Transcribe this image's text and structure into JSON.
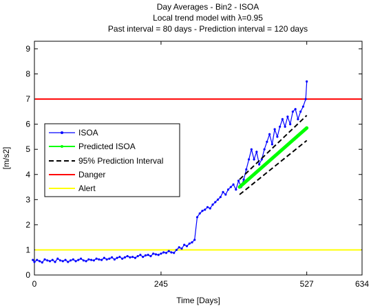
{
  "chart_data": {
    "type": "line",
    "title": [
      "Day Averages - Bin2 - ISOA",
      "Local trend model with λ=0.95",
      "Past interval = 80 days - Prediction interval = 120 days"
    ],
    "xlabel": "Time [Days]",
    "ylabel": "[m/s2]",
    "xlim": [
      0,
      634
    ],
    "ylim": [
      0,
      9.3
    ],
    "xticks": [
      0,
      245,
      527,
      634
    ],
    "yticks": [
      0,
      1,
      2,
      3,
      4,
      5,
      6,
      7,
      8,
      9
    ],
    "grid": false,
    "legend_position": "middle-left",
    "series": [
      {
        "name": "ISOA",
        "color": "#0000ff",
        "style": "line-dotted-markers",
        "x": [
          -5,
          0,
          5,
          10,
          15,
          20,
          25,
          30,
          35,
          40,
          45,
          50,
          55,
          60,
          65,
          70,
          75,
          80,
          85,
          90,
          95,
          100,
          105,
          110,
          115,
          120,
          125,
          130,
          135,
          140,
          145,
          150,
          155,
          160,
          165,
          170,
          175,
          180,
          185,
          190,
          195,
          200,
          205,
          210,
          215,
          220,
          225,
          230,
          235,
          240,
          245,
          250,
          255,
          260,
          265,
          270,
          275,
          280,
          285,
          290,
          295,
          300,
          305,
          310,
          315,
          320,
          325,
          330,
          335,
          340,
          345,
          350,
          355,
          360,
          365,
          370,
          375,
          380,
          385,
          390,
          395,
          400,
          405,
          410,
          415,
          420,
          425,
          430,
          435,
          440,
          445,
          450,
          455,
          460,
          465,
          470,
          475,
          480,
          485,
          490,
          495,
          500,
          505,
          510,
          515,
          520,
          525,
          527
        ],
        "y": [
          0.6,
          0.52,
          0.6,
          0.55,
          0.5,
          0.62,
          0.58,
          0.55,
          0.6,
          0.52,
          0.65,
          0.58,
          0.55,
          0.6,
          0.52,
          0.58,
          0.62,
          0.55,
          0.6,
          0.65,
          0.58,
          0.55,
          0.62,
          0.6,
          0.58,
          0.65,
          0.62,
          0.6,
          0.68,
          0.62,
          0.65,
          0.7,
          0.62,
          0.68,
          0.72,
          0.65,
          0.7,
          0.75,
          0.7,
          0.72,
          0.68,
          0.75,
          0.8,
          0.72,
          0.78,
          0.8,
          0.75,
          0.85,
          0.82,
          0.8,
          0.85,
          0.9,
          0.88,
          0.95,
          0.9,
          0.88,
          1.0,
          1.1,
          1.05,
          1.2,
          1.15,
          1.25,
          1.3,
          1.4,
          2.3,
          2.45,
          2.55,
          2.6,
          2.7,
          2.65,
          2.8,
          2.9,
          3.0,
          3.1,
          3.3,
          3.2,
          3.4,
          3.5,
          3.6,
          3.4,
          3.75,
          3.5,
          3.8,
          4.2,
          4.6,
          5.0,
          4.6,
          4.9,
          4.4,
          4.6,
          5.0,
          5.3,
          5.6,
          5.2,
          5.8,
          5.5,
          5.9,
          6.2,
          5.9,
          6.3,
          6.0,
          6.5,
          6.6,
          6.2,
          6.5,
          6.7,
          7.0,
          7.7
        ]
      },
      {
        "name": "Predicted ISOA",
        "color": "#00ff00",
        "x": [
          397,
          527
        ],
        "y": [
          3.5,
          5.85
        ]
      },
      {
        "name": "95% Prediction Interval",
        "color": "#000000",
        "style": "dashed",
        "lower": {
          "x": [
            397,
            527
          ],
          "y": [
            3.2,
            5.35
          ]
        },
        "upper": {
          "x": [
            397,
            527
          ],
          "y": [
            3.8,
            6.35
          ]
        }
      },
      {
        "name": "Danger",
        "color": "#ff0000",
        "y": 7
      },
      {
        "name": "Alert",
        "color": "#ffff00",
        "y": 1
      }
    ]
  }
}
